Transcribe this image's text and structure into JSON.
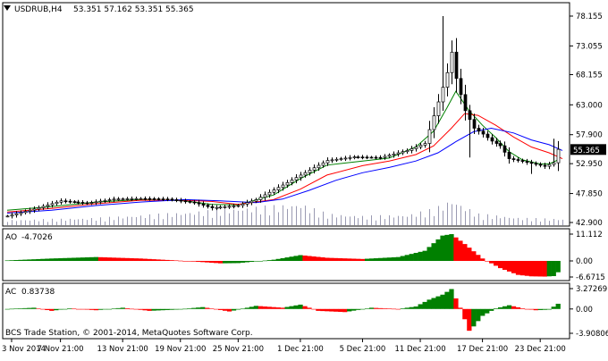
{
  "header": {
    "symbol": "USDRUB,H4",
    "ohlc": "53.351 57.162 53.351 55.365"
  },
  "footer": {
    "copyright": "BCS Trade Station, © 2001-2014, MetaQuotes Software Corp."
  },
  "colors": {
    "background": "#ffffff",
    "candle_up": "#ffffff",
    "candle_down": "#000000",
    "candle_border": "#000000",
    "volume": "#9a9ab2",
    "ma_fast": "#008000",
    "ma_mid": "#ff0000",
    "ma_slow": "#0000ff",
    "osc_up": "#008000",
    "osc_down": "#ff0000",
    "price_tag_bg": "#000000",
    "price_tag_fg": "#ffffff"
  },
  "chart_data": [
    {
      "type": "candlestick",
      "title": "USDRUB,H4",
      "y_ticks": [
        78.155,
        73.055,
        68.155,
        63.0,
        57.9,
        52.95,
        47.85,
        42.9
      ],
      "ylim": [
        42.9,
        78.155
      ],
      "current_price": "55.365",
      "x_ticks": [
        "3 Nov 2014",
        "7 Nov 21:00",
        "13 Nov 21:00",
        "19 Nov 21:00",
        "25 Nov 21:00",
        "1 Dec 21:00",
        "5 Dec 21:00",
        "11 Dec 21:00",
        "17 Dec 21:00",
        "23 Dec 21:00"
      ],
      "x_tick_bar_index": [
        1,
        12,
        26,
        39,
        52,
        66,
        80,
        93,
        107,
        120
      ],
      "close_path": [
        [
          0,
          44.0
        ],
        [
          6,
          45.2
        ],
        [
          12,
          46.6
        ],
        [
          18,
          46.2
        ],
        [
          24,
          46.9
        ],
        [
          30,
          47.0
        ],
        [
          36,
          46.9
        ],
        [
          42,
          46.3
        ],
        [
          46,
          45.4
        ],
        [
          52,
          45.8
        ],
        [
          56,
          46.8
        ],
        [
          62,
          49.3
        ],
        [
          66,
          51.0
        ],
        [
          72,
          53.5
        ],
        [
          78,
          54.1
        ],
        [
          84,
          54.0
        ],
        [
          90,
          55.2
        ],
        [
          94,
          56.4
        ],
        [
          97,
          63.5
        ],
        [
          99,
          68.5
        ],
        [
          100,
          72.0
        ],
        [
          101,
          67.5
        ],
        [
          103,
          62.0
        ],
        [
          105,
          59.0
        ],
        [
          107,
          58.0
        ],
        [
          109,
          56.8
        ],
        [
          111,
          56.0
        ],
        [
          113,
          53.8
        ],
        [
          115,
          53.5
        ],
        [
          118,
          53.0
        ],
        [
          121,
          52.5
        ],
        [
          123,
          53.1
        ],
        [
          124,
          55.4
        ]
      ],
      "spikes": [
        {
          "bar": 98,
          "high": 78.155
        },
        {
          "bar": 100,
          "high": 74.0
        },
        {
          "bar": 104,
          "low": 54.0
        },
        {
          "bar": 118,
          "low": 51.2
        },
        {
          "bar": 123,
          "high": 57.2
        }
      ],
      "moving_averages": [
        {
          "color": "#008000",
          "points": [
            [
              0,
              45.0
            ],
            [
              10,
              45.6
            ],
            [
              20,
              46.4
            ],
            [
              30,
              46.8
            ],
            [
              40,
              46.6
            ],
            [
              46,
              46.0
            ],
            [
              52,
              45.9
            ],
            [
              60,
              47.6
            ],
            [
              66,
              50.4
            ],
            [
              72,
              52.7
            ],
            [
              80,
              53.4
            ],
            [
              86,
              53.9
            ],
            [
              92,
              55.8
            ],
            [
              96,
              58.5
            ],
            [
              99,
              62.5
            ],
            [
              101,
              65.3
            ],
            [
              104,
              62.0
            ],
            [
              107,
              59.5
            ],
            [
              110,
              57.4
            ],
            [
              113,
              55.0
            ],
            [
              116,
              53.6
            ],
            [
              120,
              52.9
            ],
            [
              122,
              52.9
            ],
            [
              124,
              53.6
            ]
          ]
        },
        {
          "color": "#ff0000",
          "points": [
            [
              0,
              44.7
            ],
            [
              10,
              45.3
            ],
            [
              20,
              46.1
            ],
            [
              30,
              46.7
            ],
            [
              40,
              46.7
            ],
            [
              46,
              46.5
            ],
            [
              52,
              46.0
            ],
            [
              60,
              46.8
            ],
            [
              66,
              48.6
            ],
            [
              72,
              51.0
            ],
            [
              80,
              52.6
            ],
            [
              86,
              53.4
            ],
            [
              92,
              54.5
            ],
            [
              96,
              56.0
            ],
            [
              100,
              59.0
            ],
            [
              103,
              61.5
            ],
            [
              106,
              61.2
            ],
            [
              110,
              59.5
            ],
            [
              114,
              57.5
            ],
            [
              118,
              55.8
            ],
            [
              122,
              54.8
            ],
            [
              125,
              53.8
            ]
          ]
        },
        {
          "color": "#0000ff",
          "points": [
            [
              0,
              44.5
            ],
            [
              10,
              45.0
            ],
            [
              20,
              45.8
            ],
            [
              30,
              46.4
            ],
            [
              40,
              46.8
            ],
            [
              48,
              46.6
            ],
            [
              56,
              46.3
            ],
            [
              62,
              46.9
            ],
            [
              68,
              48.4
            ],
            [
              74,
              50.1
            ],
            [
              80,
              51.4
            ],
            [
              86,
              52.3
            ],
            [
              92,
              53.4
            ],
            [
              97,
              54.8
            ],
            [
              101,
              56.7
            ],
            [
              105,
              58.4
            ],
            [
              109,
              59.0
            ],
            [
              114,
              58.2
            ],
            [
              118,
              57.0
            ],
            [
              122,
              56.2
            ],
            [
              125,
              55.2
            ]
          ]
        }
      ],
      "volume_profile": [
        [
          0,
          0.1
        ],
        [
          20,
          0.14
        ],
        [
          40,
          0.25
        ],
        [
          60,
          0.38
        ],
        [
          66,
          0.42
        ],
        [
          72,
          0.22
        ],
        [
          80,
          0.18
        ],
        [
          90,
          0.2
        ],
        [
          96,
          0.32
        ],
        [
          100,
          0.5
        ],
        [
          106,
          0.22
        ],
        [
          116,
          0.14
        ],
        [
          125,
          0.12
        ]
      ]
    },
    {
      "type": "bar",
      "title": "AO",
      "value_label": "-4.7026",
      "y_ticks": [
        11.112,
        0.0,
        -6.6715
      ],
      "ylim": [
        -6.6715,
        11.112
      ],
      "profile": [
        [
          0,
          0.2
        ],
        [
          10,
          1.0
        ],
        [
          20,
          1.6
        ],
        [
          30,
          1.0
        ],
        [
          40,
          0.0
        ],
        [
          48,
          -1.0
        ],
        [
          52,
          -0.9
        ],
        [
          60,
          0.5
        ],
        [
          66,
          2.4
        ],
        [
          72,
          1.3
        ],
        [
          80,
          0.8
        ],
        [
          88,
          1.6
        ],
        [
          94,
          4.2
        ],
        [
          98,
          10.5
        ],
        [
          100,
          11.1
        ],
        [
          103,
          7.0
        ],
        [
          107,
          1.0
        ],
        [
          111,
          -3.0
        ],
        [
          115,
          -5.8
        ],
        [
          118,
          -6.4
        ],
        [
          121,
          -6.5
        ],
        [
          123,
          -6.3
        ],
        [
          124,
          -4.7
        ]
      ]
    },
    {
      "type": "bar",
      "title": "AC",
      "value_label": "0.83738",
      "y_ticks": [
        3.27269,
        0.0,
        -3.90806
      ],
      "ylim": [
        -3.90806,
        3.27269
      ],
      "profile": [
        [
          0,
          0.0
        ],
        [
          6,
          0.2
        ],
        [
          10,
          -0.3
        ],
        [
          14,
          0.1
        ],
        [
          20,
          -0.2
        ],
        [
          26,
          0.2
        ],
        [
          32,
          -0.3
        ],
        [
          38,
          -0.1
        ],
        [
          44,
          0.3
        ],
        [
          50,
          -0.4
        ],
        [
          56,
          0.5
        ],
        [
          62,
          0.2
        ],
        [
          66,
          0.7
        ],
        [
          70,
          -0.3
        ],
        [
          76,
          -0.5
        ],
        [
          82,
          0.2
        ],
        [
          88,
          0.0
        ],
        [
          92,
          0.4
        ],
        [
          95,
          1.5
        ],
        [
          98,
          2.3
        ],
        [
          100,
          3.2
        ],
        [
          102,
          0.2
        ],
        [
          104,
          -3.5
        ],
        [
          105,
          -2.8
        ],
        [
          107,
          -1.1
        ],
        [
          110,
          0.1
        ],
        [
          113,
          0.6
        ],
        [
          116,
          0.1
        ],
        [
          119,
          -0.2
        ],
        [
          122,
          -0.1
        ],
        [
          124,
          0.84
        ]
      ]
    }
  ]
}
